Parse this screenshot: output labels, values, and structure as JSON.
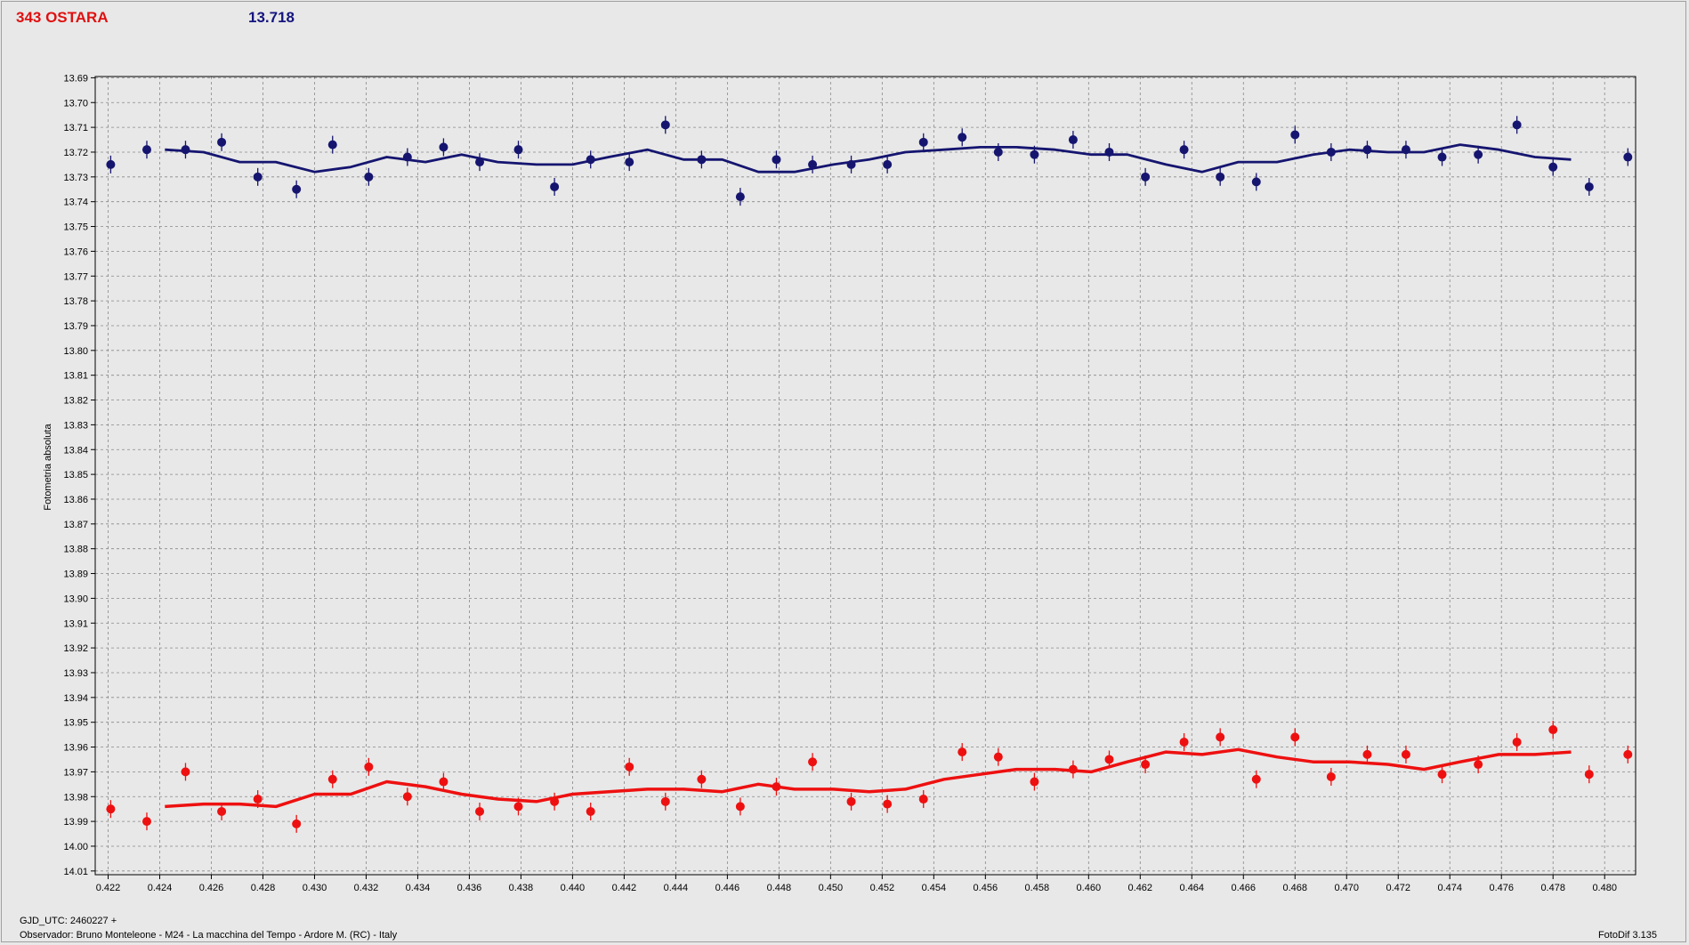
{
  "header": {
    "object_name": "343 OSTARA",
    "reference_value": "13.718"
  },
  "footer": {
    "gjd": "GJD_UTC: 2460227 +",
    "observer": "Observador: Bruno Monteleone - M24 - La macchina del Tempo - Ardore M. (RC) - Italy",
    "software": "FotoDif 3.135"
  },
  "colors": {
    "background": "#e8e8e8",
    "plot_background": "#e8e8e8",
    "grid": "#888888",
    "series_blue": "#151570",
    "series_red": "#ee1010"
  },
  "chart_data": {
    "type": "scatter",
    "ylabel": "Fotometria absoluta",
    "xlabel": "",
    "xlim": [
      0.4215,
      0.4812
    ],
    "ylim": [
      13.6895,
      14.0115
    ],
    "y_reversed": true,
    "grid": true,
    "xticks": [
      "0.422",
      "0.424",
      "0.426",
      "0.428",
      "0.430",
      "0.432",
      "0.434",
      "0.436",
      "0.438",
      "0.440",
      "0.442",
      "0.444",
      "0.446",
      "0.448",
      "0.450",
      "0.452",
      "0.454",
      "0.456",
      "0.458",
      "0.460",
      "0.462",
      "0.464",
      "0.466",
      "0.468",
      "0.470",
      "0.472",
      "0.474",
      "0.476",
      "0.478",
      "0.480"
    ],
    "yticks": [
      "13.69",
      "13.70",
      "13.71",
      "13.72",
      "13.73",
      "13.74",
      "13.75",
      "13.76",
      "13.77",
      "13.78",
      "13.79",
      "13.80",
      "13.81",
      "13.82",
      "13.83",
      "13.84",
      "13.85",
      "13.86",
      "13.87",
      "13.88",
      "13.89",
      "13.90",
      "13.91",
      "13.92",
      "13.93",
      "13.94",
      "13.95",
      "13.96",
      "13.97",
      "13.98",
      "13.99",
      "14.00",
      "14.01"
    ],
    "series": [
      {
        "color": "#151570",
        "points": [
          [
            0.4221,
            13.725
          ],
          [
            0.4235,
            13.719
          ],
          [
            0.425,
            13.719
          ],
          [
            0.4264,
            13.716
          ],
          [
            0.4278,
            13.73
          ],
          [
            0.4293,
            13.735
          ],
          [
            0.4307,
            13.717
          ],
          [
            0.4321,
            13.73
          ],
          [
            0.4336,
            13.722
          ],
          [
            0.435,
            13.718
          ],
          [
            0.4364,
            13.724
          ],
          [
            0.4379,
            13.719
          ],
          [
            0.4393,
            13.734
          ],
          [
            0.4407,
            13.723
          ],
          [
            0.4422,
            13.724
          ],
          [
            0.4436,
            13.709
          ],
          [
            0.445,
            13.723
          ],
          [
            0.4465,
            13.738
          ],
          [
            0.4479,
            13.723
          ],
          [
            0.4493,
            13.725
          ],
          [
            0.4508,
            13.725
          ],
          [
            0.4522,
            13.725
          ],
          [
            0.4536,
            13.716
          ],
          [
            0.4551,
            13.714
          ],
          [
            0.4565,
            13.72
          ],
          [
            0.4579,
            13.721
          ],
          [
            0.4594,
            13.715
          ],
          [
            0.4608,
            13.72
          ],
          [
            0.4622,
            13.73
          ],
          [
            0.4637,
            13.719
          ],
          [
            0.4651,
            13.73
          ],
          [
            0.4665,
            13.732
          ],
          [
            0.468,
            13.713
          ],
          [
            0.4694,
            13.72
          ],
          [
            0.4708,
            13.719
          ],
          [
            0.4723,
            13.719
          ],
          [
            0.4737,
            13.722
          ],
          [
            0.4751,
            13.721
          ],
          [
            0.4766,
            13.709
          ],
          [
            0.478,
            13.726
          ],
          [
            0.4794,
            13.734
          ],
          [
            0.4809,
            13.722
          ]
        ],
        "fit": [
          [
            0.4242,
            13.719
          ],
          [
            0.4257,
            13.72
          ],
          [
            0.4271,
            13.724
          ],
          [
            0.4285,
            13.724
          ],
          [
            0.43,
            13.728
          ],
          [
            0.4314,
            13.726
          ],
          [
            0.4328,
            13.722
          ],
          [
            0.4343,
            13.724
          ],
          [
            0.4357,
            13.721
          ],
          [
            0.4371,
            13.724
          ],
          [
            0.4386,
            13.725
          ],
          [
            0.44,
            13.725
          ],
          [
            0.4414,
            13.722
          ],
          [
            0.4429,
            13.719
          ],
          [
            0.4443,
            13.723
          ],
          [
            0.4458,
            13.723
          ],
          [
            0.4472,
            13.728
          ],
          [
            0.4486,
            13.728
          ],
          [
            0.4501,
            13.725
          ],
          [
            0.4515,
            13.723
          ],
          [
            0.4529,
            13.72
          ],
          [
            0.4544,
            13.719
          ],
          [
            0.4558,
            13.718
          ],
          [
            0.4572,
            13.718
          ],
          [
            0.4587,
            13.719
          ],
          [
            0.4601,
            13.721
          ],
          [
            0.4615,
            13.721
          ],
          [
            0.463,
            13.725
          ],
          [
            0.4644,
            13.728
          ],
          [
            0.4658,
            13.724
          ],
          [
            0.4673,
            13.724
          ],
          [
            0.4687,
            13.721
          ],
          [
            0.4701,
            13.719
          ],
          [
            0.4716,
            13.72
          ],
          [
            0.473,
            13.72
          ],
          [
            0.4744,
            13.717
          ],
          [
            0.4759,
            13.719
          ],
          [
            0.4773,
            13.722
          ],
          [
            0.4787,
            13.723
          ]
        ]
      },
      {
        "color": "#ee1010",
        "points": [
          [
            0.4221,
            13.985
          ],
          [
            0.4235,
            13.99
          ],
          [
            0.425,
            13.97
          ],
          [
            0.4264,
            13.986
          ],
          [
            0.4278,
            13.981
          ],
          [
            0.4293,
            13.991
          ],
          [
            0.4307,
            13.973
          ],
          [
            0.4321,
            13.968
          ],
          [
            0.4336,
            13.98
          ],
          [
            0.435,
            13.974
          ],
          [
            0.4364,
            13.986
          ],
          [
            0.4379,
            13.984
          ],
          [
            0.4393,
            13.982
          ],
          [
            0.4407,
            13.986
          ],
          [
            0.4422,
            13.968
          ],
          [
            0.4436,
            13.982
          ],
          [
            0.445,
            13.973
          ],
          [
            0.4465,
            13.984
          ],
          [
            0.4479,
            13.976
          ],
          [
            0.4493,
            13.966
          ],
          [
            0.4508,
            13.982
          ],
          [
            0.4522,
            13.983
          ],
          [
            0.4536,
            13.981
          ],
          [
            0.4551,
            13.962
          ],
          [
            0.4565,
            13.964
          ],
          [
            0.4579,
            13.974
          ],
          [
            0.4594,
            13.969
          ],
          [
            0.4608,
            13.965
          ],
          [
            0.4622,
            13.967
          ],
          [
            0.4637,
            13.958
          ],
          [
            0.4651,
            13.956
          ],
          [
            0.4665,
            13.973
          ],
          [
            0.468,
            13.956
          ],
          [
            0.4694,
            13.972
          ],
          [
            0.4708,
            13.963
          ],
          [
            0.4723,
            13.963
          ],
          [
            0.4737,
            13.971
          ],
          [
            0.4751,
            13.967
          ],
          [
            0.4766,
            13.958
          ],
          [
            0.478,
            13.953
          ],
          [
            0.4794,
            13.971
          ],
          [
            0.4809,
            13.963
          ]
        ],
        "fit": [
          [
            0.4242,
            13.984
          ],
          [
            0.4257,
            13.983
          ],
          [
            0.4271,
            13.983
          ],
          [
            0.4285,
            13.984
          ],
          [
            0.43,
            13.979
          ],
          [
            0.4314,
            13.979
          ],
          [
            0.4328,
            13.974
          ],
          [
            0.4343,
            13.976
          ],
          [
            0.4357,
            13.979
          ],
          [
            0.4371,
            13.981
          ],
          [
            0.4386,
            13.982
          ],
          [
            0.44,
            13.979
          ],
          [
            0.4414,
            13.978
          ],
          [
            0.4429,
            13.977
          ],
          [
            0.4443,
            13.977
          ],
          [
            0.4458,
            13.978
          ],
          [
            0.4472,
            13.975
          ],
          [
            0.4486,
            13.977
          ],
          [
            0.4501,
            13.977
          ],
          [
            0.4515,
            13.978
          ],
          [
            0.4529,
            13.977
          ],
          [
            0.4544,
            13.973
          ],
          [
            0.4558,
            13.971
          ],
          [
            0.4572,
            13.969
          ],
          [
            0.4587,
            13.969
          ],
          [
            0.4601,
            13.97
          ],
          [
            0.4615,
            13.966
          ],
          [
            0.463,
            13.962
          ],
          [
            0.4644,
            13.963
          ],
          [
            0.4658,
            13.961
          ],
          [
            0.4673,
            13.964
          ],
          [
            0.4687,
            13.966
          ],
          [
            0.4701,
            13.966
          ],
          [
            0.4716,
            13.967
          ],
          [
            0.473,
            13.969
          ],
          [
            0.4744,
            13.966
          ],
          [
            0.4759,
            13.963
          ],
          [
            0.4773,
            13.963
          ],
          [
            0.4787,
            13.962
          ]
        ]
      }
    ]
  }
}
